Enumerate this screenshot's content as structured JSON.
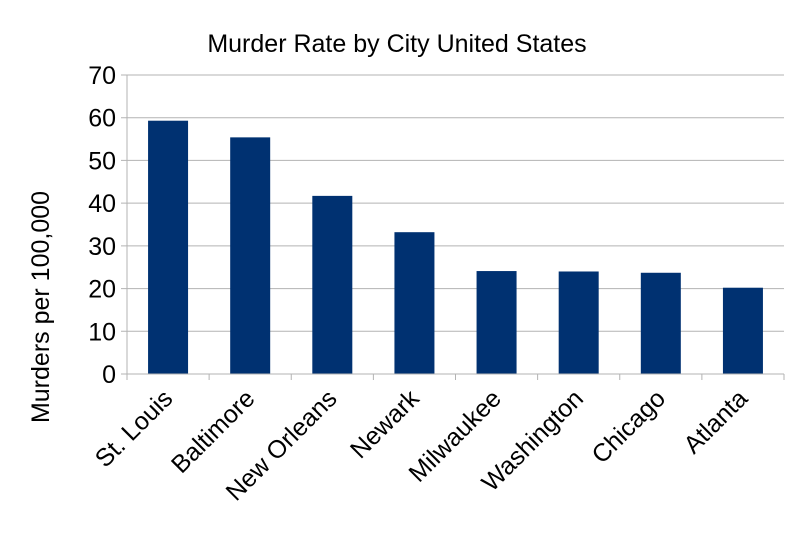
{
  "chart_data": {
    "type": "bar",
    "title": "Murder Rate by City United States",
    "xlabel": "",
    "ylabel": "Murders per 100,000",
    "categories": [
      "St. Louis",
      "Baltimore",
      "New Orleans",
      "Newark",
      "Milwaukee",
      "Washington",
      "Chicago",
      "Atlanta"
    ],
    "values": [
      59.3,
      55.4,
      41.7,
      33.2,
      24.1,
      24.0,
      23.7,
      20.2
    ],
    "ylim": [
      0,
      70
    ],
    "yticks": [
      "0",
      "10",
      "20",
      "30",
      "40",
      "50",
      "60",
      "70"
    ],
    "grid": true,
    "legend": "none",
    "bar_color": "#003171"
  }
}
